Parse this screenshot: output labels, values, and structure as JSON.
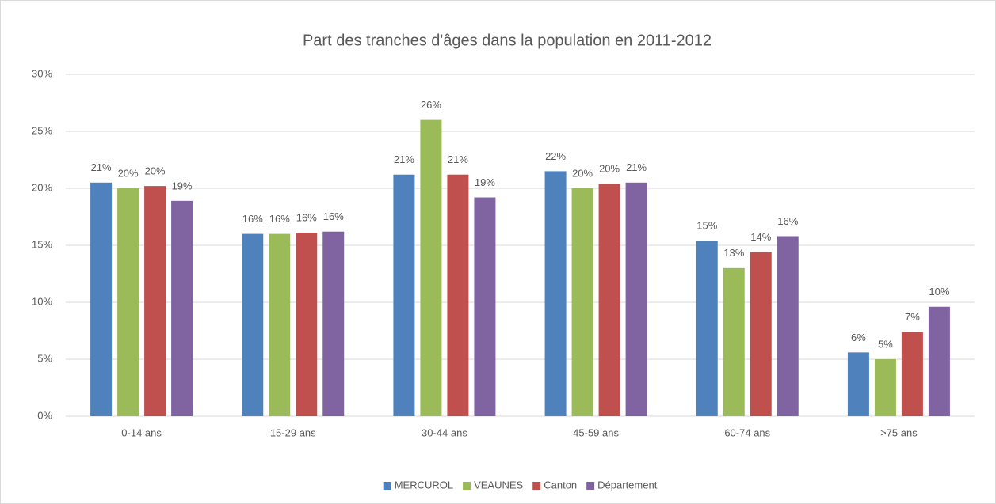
{
  "chart_data": {
    "type": "bar",
    "title": "Part des tranches d'âges dans la population en 2011-2012",
    "categories": [
      "0-14 ans",
      "15-29 ans",
      "30-44 ans",
      "45-59 ans",
      "60-74 ans",
      ">75 ans"
    ],
    "series": [
      {
        "name": "MERCUROL",
        "color": "#4f81bd",
        "values": [
          20.5,
          16,
          21.2,
          21.5,
          15.4,
          5.6
        ],
        "value_labels": [
          "21%",
          "16%",
          "21%",
          "22%",
          "15%",
          "6%"
        ]
      },
      {
        "name": "VEAUNES",
        "color": "#9bbb59",
        "values": [
          20,
          16,
          26,
          20,
          13,
          5
        ],
        "value_labels": [
          "20%",
          "16%",
          "26%",
          "20%",
          "13%",
          "5%"
        ]
      },
      {
        "name": "Canton",
        "color": "#c0504d",
        "values": [
          20.2,
          16.1,
          21.2,
          20.4,
          14.4,
          7.4
        ],
        "value_labels": [
          "20%",
          "16%",
          "21%",
          "20%",
          "14%",
          "7%"
        ]
      },
      {
        "name": "Département",
        "color": "#8064a2",
        "values": [
          18.9,
          16.2,
          19.2,
          20.5,
          15.8,
          9.6
        ],
        "value_labels": [
          "19%",
          "16%",
          "19%",
          "21%",
          "16%",
          "10%"
        ]
      }
    ],
    "ylim": [
      0,
      30
    ],
    "yticks": [
      {
        "value": 0,
        "label": "0%"
      },
      {
        "value": 5,
        "label": "5%"
      },
      {
        "value": 10,
        "label": "10%"
      },
      {
        "value": 15,
        "label": "15%"
      },
      {
        "value": 20,
        "label": "20%"
      },
      {
        "value": 25,
        "label": "25%"
      },
      {
        "value": 30,
        "label": "30%"
      }
    ],
    "grid": true,
    "legend": "bottom"
  }
}
